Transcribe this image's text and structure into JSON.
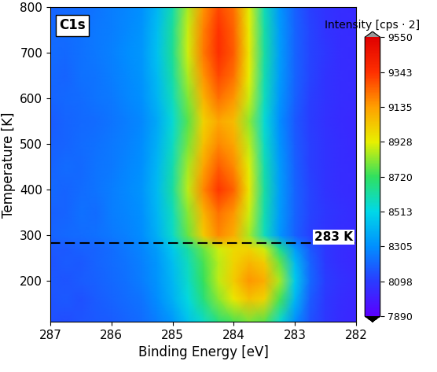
{
  "chart_data": {
    "type": "heatmap",
    "x_label": "Binding Energy [eV]",
    "y_label": "Temperature [K]",
    "annotations": [
      "C1s"
    ],
    "reference_line": {
      "y": 283,
      "label": "283 K"
    },
    "xlim": [
      287,
      282
    ],
    "xticks": [
      287,
      286,
      285,
      284,
      283,
      282
    ],
    "ylim": [
      110,
      800
    ],
    "yticks": [
      200,
      300,
      400,
      500,
      600,
      700,
      800
    ],
    "x": [
      287.0,
      286.75,
      286.5,
      286.25,
      286.0,
      285.75,
      285.5,
      285.25,
      285.0,
      284.75,
      284.5,
      284.25,
      284.0,
      283.75,
      283.5,
      283.25,
      283.0,
      282.75,
      282.5,
      282.25,
      282.0
    ],
    "y": [
      110,
      160,
      200,
      240,
      270,
      300,
      350,
      400,
      450,
      500,
      550,
      600,
      650,
      700,
      750,
      800
    ],
    "cells": [
      [
        8150,
        8140,
        8160,
        8170,
        8180,
        8200,
        8220,
        8260,
        8330,
        8450,
        8560,
        8680,
        8750,
        8800,
        8760,
        8550,
        8300,
        8150,
        8080,
        8040,
        8020
      ],
      [
        8160,
        8170,
        8150,
        8180,
        8200,
        8220,
        8240,
        8300,
        8400,
        8530,
        8680,
        8820,
        8950,
        9050,
        9000,
        8750,
        8420,
        8180,
        8090,
        8050,
        8030
      ],
      [
        8170,
        8160,
        8180,
        8190,
        8210,
        8230,
        8260,
        8320,
        8420,
        8560,
        8720,
        8880,
        9020,
        9150,
        9100,
        8850,
        8480,
        8210,
        8100,
        8060,
        8040
      ],
      [
        8160,
        8180,
        8170,
        8200,
        8220,
        8240,
        8270,
        8330,
        8440,
        8580,
        8740,
        8870,
        9000,
        9080,
        9020,
        8780,
        8430,
        8200,
        8090,
        8050,
        8030
      ],
      [
        8170,
        8170,
        8190,
        8200,
        8220,
        8250,
        8280,
        8350,
        8470,
        8620,
        8780,
        8900,
        8980,
        9000,
        8900,
        8650,
        8350,
        8170,
        8080,
        8050,
        8030
      ],
      [
        8200,
        8210,
        8220,
        8230,
        8250,
        8270,
        8300,
        8400,
        8560,
        8780,
        9020,
        9180,
        9100,
        8850,
        8580,
        8330,
        8190,
        8110,
        8070,
        8050,
        8040
      ],
      [
        8190,
        8200,
        8230,
        8220,
        8260,
        8280,
        8310,
        8420,
        8580,
        8820,
        9080,
        9220,
        9150,
        8900,
        8600,
        8340,
        8200,
        8120,
        8080,
        8060,
        8040
      ],
      [
        8210,
        8200,
        8220,
        8240,
        8260,
        8290,
        8320,
        8430,
        8620,
        8880,
        9180,
        9330,
        9250,
        8950,
        8620,
        8350,
        8200,
        8120,
        8070,
        8050,
        8040
      ],
      [
        8200,
        8220,
        8210,
        8240,
        8250,
        8280,
        8310,
        8420,
        8600,
        8850,
        9120,
        9260,
        9180,
        8920,
        8600,
        8340,
        8190,
        8110,
        8070,
        8050,
        8040
      ],
      [
        8190,
        8200,
        8220,
        8230,
        8250,
        8270,
        8300,
        8400,
        8570,
        8800,
        9050,
        9180,
        9120,
        8880,
        8570,
        8320,
        8180,
        8110,
        8070,
        8050,
        8030
      ],
      [
        8180,
        8200,
        8210,
        8220,
        8240,
        8260,
        8290,
        8380,
        8540,
        8760,
        9000,
        9120,
        9060,
        8830,
        8540,
        8300,
        8170,
        8100,
        8060,
        8040,
        8030
      ],
      [
        8200,
        8210,
        8220,
        8240,
        8250,
        8280,
        8310,
        8410,
        8580,
        8810,
        9080,
        9220,
        9150,
        8890,
        8580,
        8330,
        8190,
        8110,
        8070,
        8050,
        8040
      ],
      [
        8210,
        8200,
        8230,
        8240,
        8260,
        8290,
        8320,
        8430,
        8610,
        8860,
        9150,
        9300,
        9220,
        8930,
        8600,
        8340,
        8200,
        8120,
        8070,
        8050,
        8040
      ],
      [
        8220,
        8210,
        8230,
        8250,
        8270,
        8300,
        8330,
        8450,
        8640,
        8900,
        9200,
        9350,
        9260,
        8950,
        8620,
        8350,
        8200,
        8120,
        8080,
        8050,
        8040
      ],
      [
        8210,
        8220,
        8230,
        8250,
        8260,
        8290,
        8320,
        8440,
        8630,
        8890,
        9190,
        9340,
        9250,
        8940,
        8610,
        8340,
        8200,
        8120,
        8070,
        8050,
        8040
      ],
      [
        8200,
        8210,
        8220,
        8240,
        8260,
        8280,
        8310,
        8420,
        8600,
        8860,
        9150,
        9300,
        9220,
        8920,
        8590,
        8330,
        8190,
        8110,
        8070,
        8050,
        8040
      ]
    ],
    "colorbar": {
      "label": "Intensity [cps · 2]",
      "lim": [
        7890,
        9550
      ],
      "ticks": [
        7890,
        8098,
        8305,
        8513,
        8720,
        8928,
        9135,
        9343,
        9550
      ]
    }
  }
}
